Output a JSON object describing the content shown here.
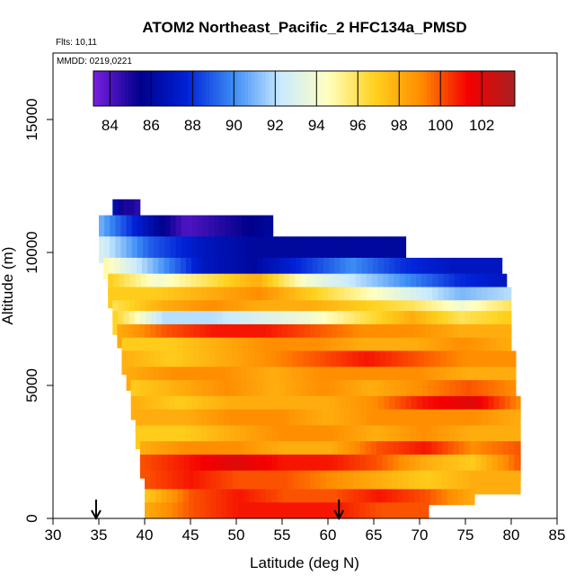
{
  "chart_data": {
    "type": "heatmap",
    "title": "ATOM2 Northeast_Pacific_2 HFC134a_PMSD",
    "flights_label": "Flts: 10,11",
    "dates_label": "MMDD: 0219,0221",
    "xlabel": "Latitude (deg N)",
    "ylabel": "Altitude (m)",
    "xlim": [
      30,
      85
    ],
    "ylim": [
      0,
      17500
    ],
    "x_ticks": [
      "30",
      "35",
      "40",
      "45",
      "50",
      "55",
      "60",
      "65",
      "70",
      "75",
      "80",
      "85"
    ],
    "y_ticks": [
      "0",
      "5000",
      "10000",
      "15000"
    ],
    "colorbar": {
      "ticks": [
        "84",
        "86",
        "88",
        "90",
        "92",
        "94",
        "96",
        "98",
        "100",
        "102"
      ],
      "range": [
        83.2,
        103.6
      ],
      "colors": [
        "#7a1fe0",
        "#00008b",
        "#0022d8",
        "#3d8df5",
        "#c9eaff",
        "#ffffc0",
        "#ffd21e",
        "#ff8c00",
        "#f50000",
        "#a82020"
      ]
    },
    "arrows_lat": [
      34.7,
      61.2
    ],
    "layers": [
      {
        "alt_bottom": 11200,
        "alt_top": 12000,
        "lat_start": 36.5,
        "lat_end": 39.5,
        "values": [
          87,
          85,
          85,
          84.5
        ]
      },
      {
        "alt_bottom": 10400,
        "alt_top": 11400,
        "lat_start": 35,
        "lat_end": 54,
        "values": [
          91,
          87,
          84,
          85,
          86
        ]
      },
      {
        "alt_bottom": 9600,
        "alt_top": 10600,
        "lat_start": 35,
        "lat_end": 68.5,
        "values": [
          93,
          89,
          87,
          86,
          86,
          86,
          86
        ]
      },
      {
        "alt_bottom": 9000,
        "alt_top": 9800,
        "lat_start": 35.5,
        "lat_end": 79,
        "values": [
          95,
          91,
          87,
          86,
          88,
          90,
          88,
          87,
          87
        ]
      },
      {
        "alt_bottom": 8400,
        "alt_top": 9200,
        "lat_start": 36,
        "lat_end": 79.5,
        "values": [
          97,
          94,
          96,
          98,
          94,
          92,
          90,
          88,
          87
        ]
      },
      {
        "alt_bottom": 7900,
        "alt_top": 8700,
        "lat_start": 36,
        "lat_end": 80,
        "values": [
          97,
          97,
          98,
          99,
          97,
          95,
          93,
          91,
          92
        ]
      },
      {
        "alt_bottom": 7400,
        "alt_top": 8200,
        "lat_start": 36.5,
        "lat_end": 80,
        "values": [
          96,
          98,
          99,
          98,
          98,
          97,
          96,
          94,
          96
        ]
      },
      {
        "alt_bottom": 6900,
        "alt_top": 7800,
        "lat_start": 36.5,
        "lat_end": 80,
        "values": [
          97,
          92,
          92,
          93,
          94,
          96,
          98,
          96,
          97
        ]
      },
      {
        "alt_bottom": 6400,
        "alt_top": 7300,
        "lat_start": 37,
        "lat_end": 80,
        "values": [
          98,
          100,
          101,
          101,
          100,
          99,
          99,
          98,
          98
        ]
      },
      {
        "alt_bottom": 5900,
        "alt_top": 6800,
        "lat_start": 37.5,
        "lat_end": 80,
        "values": [
          97,
          97,
          98,
          99,
          99,
          98,
          98,
          99,
          98
        ]
      },
      {
        "alt_bottom": 5400,
        "alt_top": 6300,
        "lat_start": 37.5,
        "lat_end": 80.5,
        "values": [
          98,
          97,
          98,
          99,
          100,
          101,
          100,
          99,
          99
        ]
      },
      {
        "alt_bottom": 4800,
        "alt_top": 5700,
        "lat_start": 38,
        "lat_end": 80.5,
        "values": [
          98,
          99,
          99,
          98,
          99,
          99,
          99,
          98,
          98
        ]
      },
      {
        "alt_bottom": 4300,
        "alt_top": 5200,
        "lat_start": 38.5,
        "lat_end": 80.5,
        "values": [
          97,
          98,
          99,
          98,
          99,
          98,
          99,
          100,
          99
        ]
      },
      {
        "alt_bottom": 3700,
        "alt_top": 4600,
        "lat_start": 38.5,
        "lat_end": 81,
        "values": [
          98,
          97,
          98,
          98,
          98,
          99,
          101,
          102,
          99
        ]
      },
      {
        "alt_bottom": 3200,
        "alt_top": 4100,
        "lat_start": 39,
        "lat_end": 81,
        "values": [
          98,
          98,
          99,
          99,
          98,
          99,
          99,
          99,
          98
        ]
      },
      {
        "alt_bottom": 2600,
        "alt_top": 3500,
        "lat_start": 39,
        "lat_end": 81,
        "values": [
          97,
          97,
          98,
          99,
          99,
          98,
          99,
          98,
          98
        ]
      },
      {
        "alt_bottom": 2000,
        "alt_top": 2900,
        "lat_start": 39.5,
        "lat_end": 81,
        "values": [
          98,
          99,
          99,
          98,
          98,
          100,
          101,
          99,
          100
        ]
      },
      {
        "alt_bottom": 1500,
        "alt_top": 2400,
        "lat_start": 39.5,
        "lat_end": 81,
        "values": [
          100,
          101,
          102,
          101,
          101,
          100,
          98,
          97,
          100
        ]
      },
      {
        "alt_bottom": 900,
        "alt_top": 1800,
        "lat_start": 40,
        "lat_end": 81,
        "values": [
          100,
          101,
          100,
          100,
          99,
          98,
          97,
          98,
          98
        ]
      },
      {
        "alt_bottom": 500,
        "alt_top": 1100,
        "lat_start": 40,
        "lat_end": 76,
        "values": [
          97,
          100,
          101,
          100,
          100,
          101,
          100,
          98
        ]
      },
      {
        "alt_bottom": 0,
        "alt_top": 600,
        "lat_start": 40,
        "lat_end": 71,
        "values": [
          98,
          100,
          101,
          101,
          101,
          100,
          100
        ]
      }
    ]
  }
}
